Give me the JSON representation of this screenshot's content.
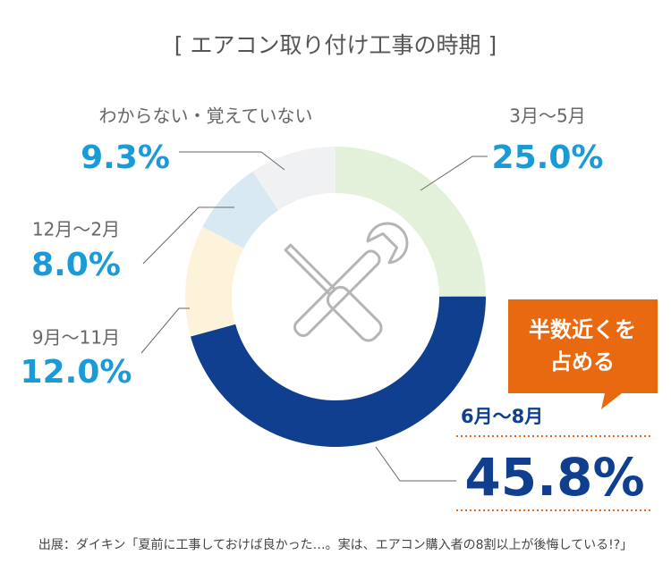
{
  "chart_data": {
    "type": "donut",
    "title": "[ エアコン取り付け工事の時期 ]",
    "categories": [
      "3月〜5月",
      "6月〜8月",
      "9月〜11月",
      "12月〜2月",
      "わからない・覚えていない"
    ],
    "values": [
      25.0,
      45.8,
      12.0,
      8.0,
      9.3
    ],
    "value_labels": [
      "25.0%",
      "45.8%",
      "12.0%",
      "8.0%",
      "9.3%"
    ],
    "colors": [
      "#e4f1da",
      "#0f3f8e",
      "#fdf3da",
      "#d8e9f3",
      "#f0f1f3"
    ],
    "annotation": [
      "半数近くを",
      "占める"
    ],
    "source": "出展：ダイキン「夏前に工事しておけば良かった…。実は、エアコン購入者の8割以上が後悔している!?」"
  }
}
